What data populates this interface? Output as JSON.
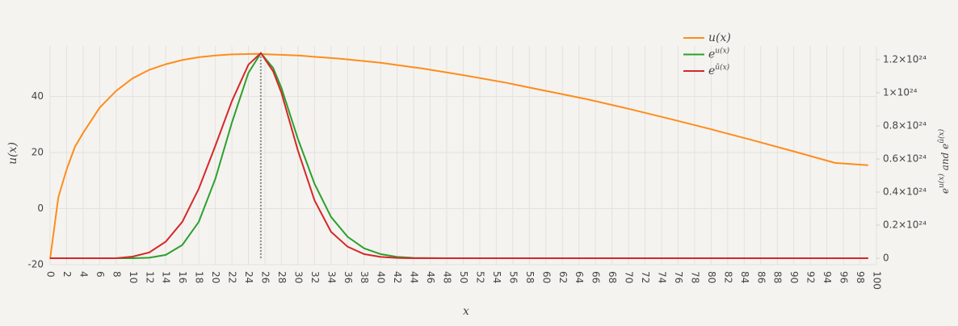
{
  "chart_data": {
    "type": "line",
    "xlabel": "x",
    "ylabel": "u(x)",
    "y2label": [
      {
        "text": "e"
      },
      {
        "sup": "u(x)"
      },
      {
        "text": " and e"
      },
      {
        "sup": "ũ(x)"
      }
    ],
    "xlim": [
      0,
      100
    ],
    "xticks": [
      0,
      2,
      4,
      6,
      8,
      10,
      12,
      14,
      16,
      18,
      20,
      22,
      24,
      26,
      28,
      30,
      32,
      34,
      36,
      38,
      40,
      42,
      44,
      46,
      48,
      50,
      52,
      54,
      56,
      58,
      60,
      62,
      64,
      66,
      68,
      70,
      72,
      74,
      76,
      78,
      80,
      82,
      84,
      86,
      88,
      90,
      92,
      94,
      96,
      98,
      100
    ],
    "ylim": [
      -20,
      58
    ],
    "yticks": [
      -20,
      0,
      20,
      40
    ],
    "y2lim": [
      -3.9e+22,
      1.283e+24
    ],
    "y2ticks": [
      0,
      {
        "value": 2e+23,
        "label": "0.2×10²⁴"
      },
      {
        "value": 4e+23,
        "label": "0.4×10²⁴"
      },
      {
        "value": 6e+23,
        "label": "0.6×10²⁴"
      },
      {
        "value": 8e+23,
        "label": "0.8×10²⁴"
      },
      {
        "value": 1e+24,
        "label": "1×10²⁴"
      },
      {
        "value": 1.2e+24,
        "label": "1.2×10²⁴"
      }
    ],
    "grid": true,
    "vline": 25.5,
    "series": [
      {
        "name": "u(x)",
        "color": "#ff8c1a",
        "x": [
          0,
          1,
          2,
          3,
          4,
          6,
          8,
          10,
          12,
          14,
          16,
          18,
          20,
          22,
          25,
          30,
          35,
          40,
          45,
          50,
          55,
          60,
          65,
          70,
          75,
          80,
          85,
          90,
          95,
          99
        ],
        "values": [
          -18,
          4,
          14,
          22,
          27,
          36,
          42,
          46.5,
          49.5,
          51.5,
          53,
          54,
          54.6,
          55,
          55.2,
          54.6,
          53.5,
          52,
          50,
          47.6,
          45,
          42,
          39,
          35.6,
          32,
          28.3,
          24.4,
          20.4,
          16.3,
          15.5
        ]
      },
      {
        "name": "e",
        "sup": "u(x)",
        "color": "#2ca02c",
        "axis": "y2",
        "x": [
          0,
          10,
          12,
          14,
          16,
          18,
          20,
          22,
          24,
          25.5,
          27,
          28,
          30,
          32,
          34,
          36,
          38,
          40,
          42,
          44,
          48,
          99
        ],
        "values": [
          0,
          0,
          3e+21,
          2e+22,
          8e+22,
          2.2e+23,
          4.8e+23,
          8.2e+23,
          1.12e+24,
          1.24e+24,
          1.15e+24,
          1.03e+24,
          7.2e+23,
          4.5e+23,
          2.5e+23,
          1.3e+23,
          6e+22,
          2.5e+22,
          8e+21,
          2e+21,
          0,
          0
        ]
      },
      {
        "name": "e",
        "sup": "ũ(x)",
        "color": "#d62728",
        "axis": "y2",
        "x": [
          0,
          8,
          10,
          12,
          14,
          16,
          18,
          20,
          22,
          24,
          25.5,
          27,
          28,
          30,
          32,
          34,
          36,
          38,
          40,
          42,
          44,
          99
        ],
        "values": [
          0,
          0,
          1e+22,
          3.5e+22,
          1e+23,
          2.2e+23,
          4.2e+23,
          6.8e+23,
          9.5e+23,
          1.17e+24,
          1.24e+24,
          1.13e+24,
          1e+24,
          6.5e+23,
          3.5e+23,
          1.6e+23,
          7e+22,
          2.5e+22,
          8e+21,
          2e+21,
          0,
          0
        ]
      }
    ]
  }
}
